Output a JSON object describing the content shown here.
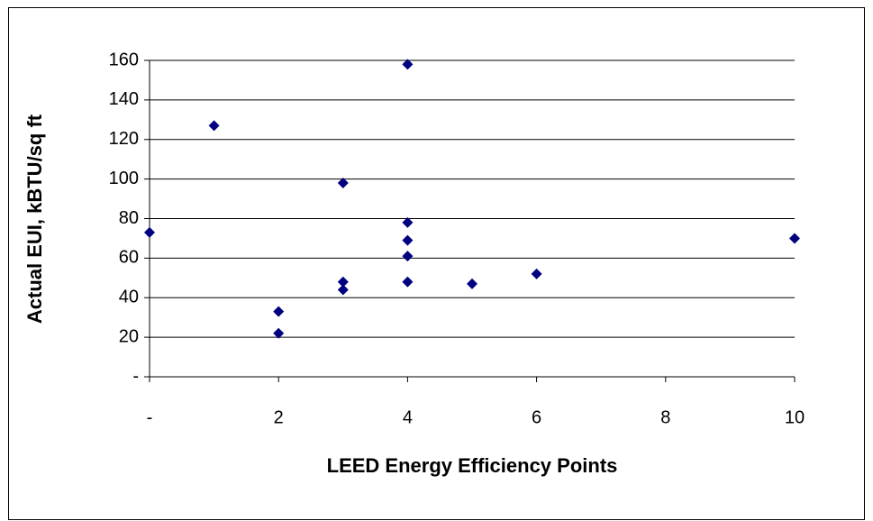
{
  "chart_data": {
    "type": "scatter",
    "x_label": "LEED Energy Efficiency Points",
    "y_label": "Actual EUI, kBTU/sq ft",
    "series": [
      {
        "color": "#000080",
        "x": [
          0,
          1,
          2,
          2,
          3,
          3,
          3,
          4,
          4,
          4,
          4,
          4,
          5,
          6,
          10
        ],
        "values": [
          73,
          127,
          33,
          22,
          98,
          48,
          44,
          158,
          78,
          69,
          61,
          48,
          47,
          52,
          70
        ]
      }
    ],
    "xlim": [
      0,
      10
    ],
    "xticks": [
      {
        "value": 0,
        "label": "-"
      },
      2,
      4,
      6,
      8,
      10
    ],
    "ylim": [
      0,
      160
    ],
    "yticks": [
      {
        "value": 0,
        "label": "-"
      },
      20,
      40,
      60,
      80,
      100,
      120,
      140,
      160
    ],
    "grid": true
  }
}
